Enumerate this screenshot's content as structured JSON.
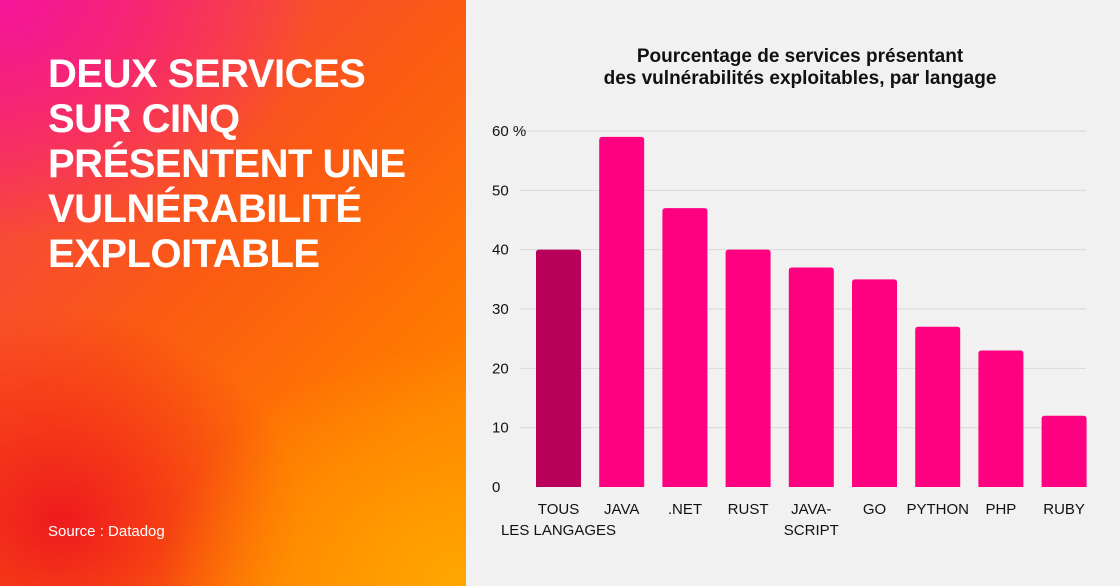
{
  "headline": "DEUX SERVICES SUR CINQ PRÉSENTENT UNE VULNÉRABILITÉ EXPLOITABLE",
  "source": "Source : Datadog",
  "colors": {
    "highlight": "#b8005a",
    "bar": "#ff0080",
    "grid": "#d8d8d8"
  },
  "chart_data": {
    "type": "bar",
    "title": "Pourcentage de services présentant des vulnérabilités exploitables, par langage",
    "title_lines": [
      "Pourcentage de services présentant",
      "des vulnérabilités exploitables, par langage"
    ],
    "categories": [
      [
        "TOUS",
        "LES LANGAGES"
      ],
      [
        "JAVA"
      ],
      [
        ".NET"
      ],
      [
        "RUST"
      ],
      [
        "JAVA-",
        "SCRIPT"
      ],
      [
        "GO"
      ],
      [
        "PYTHON"
      ],
      [
        "PHP"
      ],
      [
        "RUBY"
      ]
    ],
    "values": [
      40,
      59,
      47,
      40,
      37,
      35,
      27,
      23,
      12
    ],
    "highlighted_index": 0,
    "ylim": [
      0,
      60
    ],
    "yticks": [
      "0",
      "10",
      "20",
      "30",
      "40",
      "50",
      "60 %"
    ],
    "grid": true
  }
}
